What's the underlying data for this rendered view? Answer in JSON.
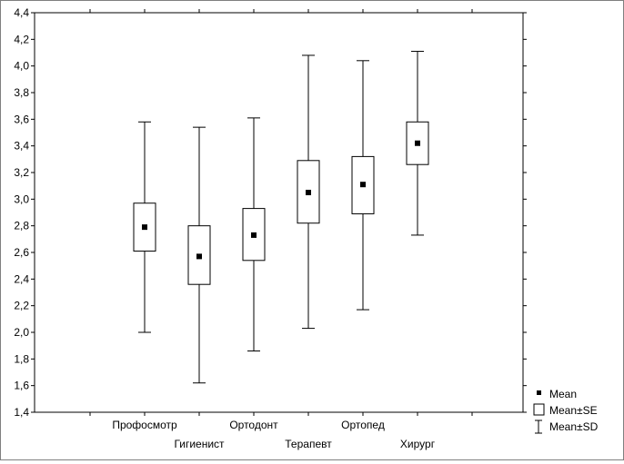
{
  "chart_data": {
    "type": "boxplot",
    "categories": [
      "Профосмотр",
      "Гигиенист",
      "Ортодонт",
      "Терапевт",
      "Ортопед",
      "Хирург"
    ],
    "series": [
      {
        "name": "Mean",
        "values": [
          2.79,
          2.57,
          2.73,
          3.05,
          3.11,
          3.42
        ]
      },
      {
        "name": "Mean±SE",
        "values": [
          [
            2.61,
            2.97
          ],
          [
            2.36,
            2.8
          ],
          [
            2.54,
            2.93
          ],
          [
            2.82,
            3.29
          ],
          [
            2.89,
            3.32
          ],
          [
            3.26,
            3.58
          ]
        ]
      },
      {
        "name": "Mean±SD",
        "values": [
          [
            2.0,
            3.58
          ],
          [
            1.62,
            3.54
          ],
          [
            1.86,
            3.61
          ],
          [
            2.03,
            4.08
          ],
          [
            2.17,
            4.04
          ],
          [
            2.73,
            4.11
          ]
        ]
      }
    ],
    "y_ticks": [
      "1,4",
      "1,6",
      "1,8",
      "2,0",
      "2,2",
      "2,4",
      "2,6",
      "2,8",
      "3,0",
      "3,2",
      "3,4",
      "3,6",
      "3,8",
      "4,0",
      "4,2",
      "4,4"
    ],
    "ylim": [
      1.4,
      4.4
    ],
    "grid": false,
    "legend_position": "bottom-right outside",
    "legend": [
      "Mean",
      "Mean±SE",
      "Mean±SD"
    ],
    "colors": {
      "box": "#ffffff",
      "stroke": "#000000",
      "mean": "#000000"
    }
  }
}
